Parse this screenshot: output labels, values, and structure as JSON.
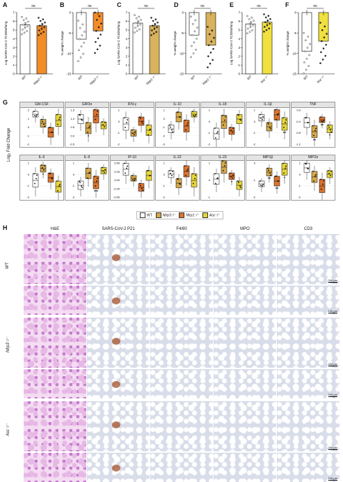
{
  "panel_letters": {
    "A": "A",
    "B": "B",
    "C": "C",
    "D": "D",
    "E": "E",
    "F": "F",
    "G": "G",
    "H": "H"
  },
  "colors": {
    "WT": "#ffffff",
    "Nlrp3": "#d4a84b",
    "Nlrp1": "#d9742f",
    "Asc": "#e6d53a",
    "bar_orange": "#f28c28",
    "bar_tan": "#d8b25c",
    "bar_yellow": "#f0e040"
  },
  "top_panels": [
    {
      "letter": "A",
      "ylabel": "Log SARS-CoV-2 TCID50/lung",
      "ns": "ns",
      "ticks": [
        "0",
        "1",
        "2",
        "3",
        "4",
        "5",
        "6",
        "7"
      ],
      "groups": [
        "WT",
        "Nlrp3⁻/⁻"
      ],
      "values": [
        5.6,
        5.5
      ],
      "kind": "log"
    },
    {
      "letter": "B",
      "ylabel": "% weight change",
      "ns": "ns",
      "ticks": [
        "0",
        "-5",
        "-10",
        "-15"
      ],
      "groups": [
        "WT",
        "Nlrp3⁻/⁻"
      ],
      "values": [
        -6.5,
        -4.5
      ],
      "kind": "wt"
    },
    {
      "letter": "C",
      "ylabel": "Log SARS-CoV-2 TCID50/lung",
      "ns": "ns",
      "ticks": [
        "0",
        "1",
        "2",
        "3",
        "4",
        "5",
        "6",
        "7"
      ],
      "groups": [
        "WT",
        "Nlrp1⁻/⁻"
      ],
      "values": [
        5.8,
        5.5
      ],
      "kind": "log"
    },
    {
      "letter": "D",
      "ylabel": "% weight change",
      "ns": "ns",
      "ticks": [
        "0",
        "-5",
        "-10",
        "-15"
      ],
      "groups": [
        "WT",
        "Nlrp1⁻/⁻"
      ],
      "values": [
        -5.5,
        -8
      ],
      "kind": "wt"
    },
    {
      "letter": "E",
      "ylabel": "Log SARS-CoV-2 TCID50/lung",
      "ns": "ns",
      "ticks": [
        "0",
        "1",
        "2",
        "3",
        "4",
        "5",
        "6",
        "7"
      ],
      "groups": [
        "WT",
        "Asc⁻/⁻"
      ],
      "values": [
        5.7,
        5.9
      ],
      "kind": "log"
    },
    {
      "letter": "F",
      "ylabel": "% weight change",
      "ns": "ns",
      "ticks": [
        "0",
        "-5",
        "-10",
        "-15"
      ],
      "groups": [
        "WT",
        "Asc⁻/⁻"
      ],
      "values": [
        -9.5,
        -7
      ],
      "kind": "wt"
    }
  ],
  "g_ylabel": "Log₂ Fold Change",
  "cytokines": [
    {
      "name": "GM-CSF",
      "ticks": [
        "2",
        "1",
        "0",
        "-1",
        "-2"
      ],
      "stars": [
        "",
        "",
        "",
        ""
      ]
    },
    {
      "name": "GROα",
      "ticks": [
        "1.5",
        "1.0",
        "0.5",
        "0.0",
        "-0.5"
      ],
      "stars": [
        "",
        "*",
        "",
        ""
      ]
    },
    {
      "name": "IFN-γ",
      "ticks": [
        "1",
        "0",
        "-1",
        "-2"
      ],
      "stars": [
        "",
        "",
        "",
        ""
      ]
    },
    {
      "name": "IL-10",
      "ticks": [
        "1",
        "0",
        "-1",
        "-2",
        "-3"
      ],
      "stars": [
        "",
        "",
        "",
        ""
      ]
    },
    {
      "name": "IL-18",
      "ticks": [
        "1",
        "0",
        "-1",
        "-2"
      ],
      "stars": [
        "",
        "",
        "",
        ""
      ]
    },
    {
      "name": "IL-1β",
      "ticks": [
        "1",
        "0",
        "-1",
        "-2"
      ],
      "stars": [
        "",
        "",
        "",
        "**"
      ]
    },
    {
      "name": "TNF",
      "ticks": [
        "0.0",
        "-0.4",
        "-0.8",
        "-1.2"
      ],
      "stars": [
        "",
        "**",
        "**",
        "*"
      ]
    },
    {
      "name": "IL-6",
      "ticks": [
        "1",
        "0",
        "-1",
        "-2"
      ],
      "stars": [
        "",
        "*",
        "",
        ""
      ]
    },
    {
      "name": "IL-9",
      "ticks": [
        "1",
        "0",
        "-1",
        "-2"
      ],
      "stars": [
        "",
        "",
        "***",
        ""
      ]
    },
    {
      "name": "IP-10",
      "ticks": [
        "0.50",
        "0.25",
        "0.00",
        "-0.25",
        "-0.50"
      ],
      "stars": [
        "",
        "",
        "",
        ""
      ]
    },
    {
      "name": "IL-22",
      "ticks": [
        "1",
        "0",
        "-1",
        "-2"
      ],
      "stars": [
        "",
        "",
        "",
        ""
      ]
    },
    {
      "name": "IL-23",
      "ticks": [
        "1",
        "0",
        "-1"
      ],
      "stars": [
        "",
        "",
        "*",
        ""
      ]
    },
    {
      "name": "MIP1β",
      "ticks": [
        "0",
        "-1",
        "-2"
      ],
      "stars": [
        "",
        "**",
        "**",
        "*"
      ]
    },
    {
      "name": "MIP2α",
      "ticks": [
        "1",
        "0",
        "-1",
        "-2"
      ],
      "stars": [
        "",
        "",
        "",
        ""
      ]
    }
  ],
  "legend": [
    {
      "label": "WT",
      "color": "#ffffff"
    },
    {
      "label": "Nlrp3⁻/⁻",
      "color": "#d4a84b"
    },
    {
      "label": "Nlrp1⁻/⁻",
      "color": "#d9742f"
    },
    {
      "label": "Asc⁻/⁻",
      "color": "#e6d53a"
    }
  ],
  "histology": {
    "columns": [
      "H&E",
      "SARS-CoV-2 P21",
      "F4/80",
      "MPO",
      "CD3"
    ],
    "rows": [
      "WT",
      "Nlrp3⁻/⁻",
      "Asc⁻/⁻"
    ],
    "scale_top": "200 μm",
    "scale_bottom": "100 μm"
  }
}
